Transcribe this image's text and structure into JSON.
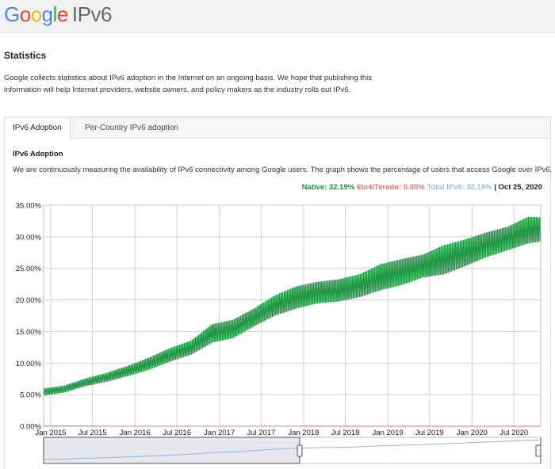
{
  "header": {
    "logo_letters": [
      "G",
      "o",
      "o",
      "g",
      "l",
      "e"
    ],
    "product": "IPv6"
  },
  "page": {
    "title": "Statistics",
    "intro_line1": "Google collects statistics about IPv6 adoption in the Internet on an ongoing basis. We hope that publishing this",
    "intro_line2": "information will help Internet providers, website owners, and policy makers as the industry rolls out IPv6."
  },
  "tabs": [
    {
      "label": "IPv6 Adoption",
      "active": true
    },
    {
      "label": "Per-Country IPv6 adoption",
      "active": false
    }
  ],
  "panel": {
    "title": "IPv6 Adoption",
    "description": "We are continuously measuring the availability of IPv6 connectivity among Google users. The graph shows the percentage of users that access Google over IPv6."
  },
  "legend": {
    "native": "Native: 32.19%",
    "teredo": "6to4/Teredo: 0.00%",
    "total": "Total IPv6: 32.19%",
    "separator": "|",
    "date": "Oct 25, 2020"
  },
  "colors": {
    "native": "#1a9641",
    "teredo": "#e6706a",
    "total": "#9fbde4",
    "grid": "#cfcfcf"
  },
  "chart_data": {
    "type": "line",
    "title": "",
    "xlabel": "",
    "ylabel": "",
    "ylim": [
      0,
      35
    ],
    "y_ticks": [
      "0.00%",
      "5.00%",
      "10.00%",
      "15.00%",
      "20.00%",
      "25.00%",
      "30.00%",
      "35.00%"
    ],
    "x_ticks": [
      "Jan 2015",
      "Jul 2015",
      "Jan 2016",
      "Jul 2016",
      "Jan 2017",
      "Jul 2017",
      "Jan 2018",
      "Jul 2018",
      "Jan 2019",
      "Jul 2019",
      "Jan 2020",
      "Jul 2020"
    ],
    "x_range": [
      "2014-12-01",
      "2020-10-25"
    ],
    "grid": true,
    "series": [
      {
        "name": "Native",
        "x": [
          "2014-12-01",
          "2015-03-01",
          "2015-06-01",
          "2015-09-01",
          "2015-12-01",
          "2016-03-01",
          "2016-06-01",
          "2016-09-01",
          "2016-12-01",
          "2017-03-01",
          "2017-06-01",
          "2017-09-01",
          "2017-12-01",
          "2018-03-01",
          "2018-06-01",
          "2018-09-01",
          "2018-12-01",
          "2019-03-01",
          "2019-06-01",
          "2019-09-01",
          "2019-12-01",
          "2020-03-01",
          "2020-06-01",
          "2020-09-01",
          "2020-10-25"
        ],
        "low": [
          4.9,
          5.4,
          6.4,
          7.1,
          8.0,
          9.0,
          10.3,
          11.4,
          13.3,
          14.0,
          15.9,
          17.6,
          18.7,
          19.5,
          19.8,
          20.5,
          21.6,
          22.4,
          23.6,
          24.1,
          25.4,
          26.8,
          27.9,
          29.0,
          29.3
        ],
        "high": [
          5.9,
          6.4,
          7.5,
          8.4,
          9.5,
          10.8,
          12.3,
          13.5,
          16.1,
          16.8,
          18.6,
          20.7,
          22.1,
          22.8,
          23.2,
          24.0,
          25.6,
          26.4,
          27.1,
          28.6,
          29.5,
          30.6,
          31.5,
          33.1,
          33.0
        ]
      },
      {
        "name": "6to4/Teredo",
        "x": [
          "2014-12-01",
          "2020-10-25"
        ],
        "values": [
          0.03,
          0.0
        ]
      }
    ]
  }
}
